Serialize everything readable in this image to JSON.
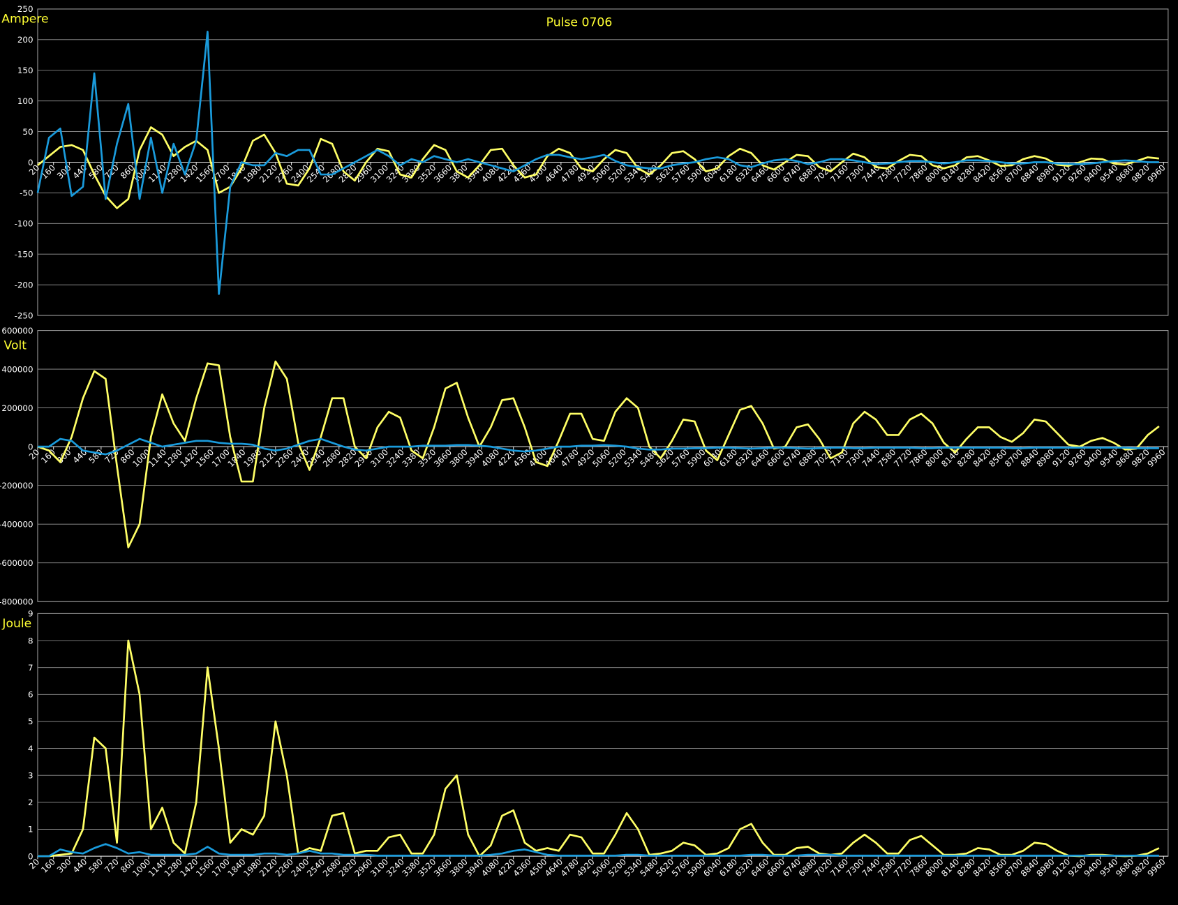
{
  "chart_data": [
    {
      "type": "line",
      "title": "Pulse 0706",
      "y_label": "Ampere",
      "x": [
        20,
        120,
        220,
        320,
        420,
        520,
        620,
        720,
        820,
        920,
        1020,
        1120,
        1220,
        1320,
        1420,
        1520,
        1620,
        1720,
        1820,
        1920,
        2020,
        2120,
        2220,
        2320,
        2420,
        2520,
        2620,
        2720,
        2820,
        2920,
        3020,
        3120,
        3220,
        3320,
        3420,
        3520,
        3620,
        3720,
        3820,
        3920,
        4020,
        4120,
        4220,
        4320,
        4420,
        4520,
        4620,
        4720,
        4820,
        4920,
        5020,
        5120,
        5220,
        5320,
        5420,
        5520,
        5620,
        5720,
        5820,
        5920,
        6020,
        6120,
        6220,
        6320,
        6420,
        6520,
        6620,
        6720,
        6820,
        6920,
        7020,
        7120,
        7220,
        7320,
        7420,
        7520,
        7620,
        7720,
        7820,
        7920,
        8020,
        8120,
        8220,
        8320,
        8420,
        8520,
        8620,
        8720,
        8820,
        8920,
        9020,
        9120,
        9220,
        9320,
        9420,
        9520,
        9620,
        9720,
        9820,
        9920
      ],
      "series": [
        {
          "color": "#ffff66",
          "values": [
            -5,
            10,
            25,
            28,
            20,
            -20,
            -55,
            -75,
            -60,
            20,
            57,
            45,
            10,
            25,
            35,
            20,
            -50,
            -40,
            -10,
            35,
            45,
            15,
            -35,
            -38,
            -10,
            38,
            30,
            -15,
            -30,
            0,
            22,
            18,
            -20,
            -25,
            5,
            28,
            20,
            -15,
            -25,
            -5,
            20,
            22,
            -5,
            -25,
            -20,
            10,
            22,
            15,
            -10,
            -15,
            5,
            20,
            15,
            -10,
            -20,
            -5,
            15,
            18,
            5,
            -15,
            -10,
            10,
            22,
            15,
            -5,
            -12,
            0,
            12,
            10,
            -8,
            -15,
            0,
            14,
            8,
            -8,
            -10,
            2,
            12,
            10,
            -5,
            -10,
            -5,
            8,
            10,
            3,
            -6,
            -5,
            5,
            10,
            6,
            -4,
            -6,
            0,
            6,
            5,
            -2,
            -4,
            2,
            8,
            6
          ]
        },
        {
          "color": "#1a9bdc",
          "values": [
            -50,
            40,
            55,
            -55,
            -40,
            145,
            -60,
            30,
            95,
            -60,
            40,
            -50,
            30,
            -20,
            35,
            213,
            -215,
            -40,
            0,
            -5,
            -5,
            15,
            10,
            20,
            20,
            -20,
            -20,
            -10,
            0,
            10,
            20,
            10,
            -5,
            5,
            0,
            10,
            5,
            0,
            5,
            0,
            -5,
            -10,
            -15,
            -5,
            5,
            12,
            12,
            8,
            5,
            8,
            12,
            2,
            -5,
            -8,
            -10,
            -10,
            -5,
            -2,
            0,
            5,
            8,
            5,
            -5,
            -8,
            -2,
            3,
            5,
            2,
            -3,
            0,
            5,
            5,
            3,
            0,
            -3,
            -2,
            0,
            2,
            2,
            0,
            -2,
            0,
            3,
            3,
            2,
            0,
            -2,
            -2,
            0,
            0,
            -2,
            -3,
            -3,
            -2,
            0,
            2,
            3,
            2,
            0,
            0
          ]
        }
      ],
      "xlim": [
        20,
        10000
      ],
      "ylim": [
        -250,
        250
      ],
      "yticks": [
        -250,
        -200,
        -150,
        -100,
        -50,
        0,
        50,
        100,
        150,
        200,
        250
      ],
      "grid": true,
      "xticks": [
        20,
        160,
        300,
        440,
        580,
        720,
        860,
        1000,
        1140,
        1280,
        1420,
        1560,
        1700,
        1840,
        1980,
        2120,
        2260,
        2400,
        2540,
        2680,
        2820,
        2960,
        3100,
        3240,
        3380,
        3520,
        3660,
        3800,
        3940,
        4080,
        4220,
        4360,
        4500,
        4640,
        4780,
        4920,
        5060,
        5200,
        5340,
        5480,
        5620,
        5760,
        5900,
        6040,
        6180,
        6320,
        6460,
        6600,
        6740,
        6880,
        7020,
        7160,
        7300,
        7440,
        7580,
        7720,
        7860,
        8000,
        8140,
        8280,
        8420,
        8560,
        8700,
        8840,
        8980,
        9120,
        9260,
        9400,
        9540,
        9680,
        9820,
        9960
      ]
    },
    {
      "type": "line",
      "y_label": "Volt",
      "x": [
        20,
        120,
        220,
        320,
        420,
        520,
        620,
        720,
        820,
        920,
        1020,
        1120,
        1220,
        1320,
        1420,
        1520,
        1620,
        1720,
        1820,
        1920,
        2020,
        2120,
        2220,
        2320,
        2420,
        2520,
        2620,
        2720,
        2820,
        2920,
        3020,
        3120,
        3220,
        3320,
        3420,
        3520,
        3620,
        3720,
        3820,
        3920,
        4020,
        4120,
        4220,
        4320,
        4420,
        4520,
        4620,
        4720,
        4820,
        4920,
        5020,
        5120,
        5220,
        5320,
        5420,
        5520,
        5620,
        5720,
        5820,
        5920,
        6020,
        6120,
        6220,
        6320,
        6420,
        6520,
        6620,
        6720,
        6820,
        6920,
        7020,
        7120,
        7220,
        7320,
        7420,
        7520,
        7620,
        7720,
        7820,
        7920,
        8020,
        8120,
        8220,
        8320,
        8420,
        8520,
        8620,
        8720,
        8820,
        8920,
        9020,
        9120,
        9220,
        9320,
        9420,
        9520,
        9620,
        9720,
        9820,
        9920
      ],
      "series": [
        {
          "color": "#ffff66",
          "values": [
            0,
            -20000,
            -80000,
            50000,
            250000,
            390000,
            350000,
            -100000,
            -520000,
            -400000,
            50000,
            270000,
            120000,
            30000,
            250000,
            430000,
            420000,
            50000,
            -180000,
            -180000,
            200000,
            440000,
            350000,
            20000,
            -120000,
            50000,
            250000,
            250000,
            0,
            -60000,
            100000,
            180000,
            150000,
            -20000,
            -60000,
            100000,
            300000,
            330000,
            150000,
            0,
            100000,
            240000,
            250000,
            100000,
            -80000,
            -100000,
            30000,
            170000,
            170000,
            40000,
            30000,
            180000,
            250000,
            200000,
            0,
            -60000,
            30000,
            140000,
            130000,
            -20000,
            -70000,
            60000,
            190000,
            210000,
            120000,
            -10000,
            0,
            100000,
            115000,
            40000,
            -60000,
            -30000,
            120000,
            180000,
            140000,
            60000,
            60000,
            140000,
            170000,
            120000,
            20000,
            -30000,
            40000,
            100000,
            100000,
            50000,
            25000,
            70000,
            140000,
            130000,
            70000,
            10000,
            0,
            30000,
            45000,
            20000,
            -15000,
            -10000,
            60000,
            105000
          ]
        },
        {
          "color": "#1a9bdc",
          "values": [
            0,
            0,
            40000,
            30000,
            -20000,
            -30000,
            -40000,
            -20000,
            10000,
            40000,
            20000,
            0,
            10000,
            20000,
            30000,
            30000,
            20000,
            15000,
            15000,
            10000,
            -10000,
            -20000,
            -10000,
            10000,
            30000,
            40000,
            20000,
            0,
            -15000,
            -20000,
            -10000,
            0,
            0,
            0,
            5000,
            5000,
            5000,
            8000,
            8000,
            5000,
            0,
            -10000,
            -20000,
            -25000,
            -20000,
            -10000,
            0,
            0,
            5000,
            5000,
            8000,
            5000,
            0,
            -10000,
            -15000,
            -15000,
            -10000,
            -10000,
            -8000,
            -8000,
            -5000,
            -5000,
            -8000,
            -10000,
            -8000,
            -5000,
            -5000,
            -8000,
            -10000,
            -8000,
            -5000,
            -5000,
            -8000,
            -8000,
            -5000,
            -5000,
            -5000,
            -5000,
            -8000,
            -8000,
            -5000,
            -5000,
            -5000,
            -5000,
            -5000,
            -5000,
            -8000,
            -8000,
            -5000,
            -5000,
            -5000,
            -5000,
            -5000,
            -5000,
            -5000,
            -5000,
            -5000,
            -8000,
            -8000,
            -8000
          ]
        }
      ],
      "xlim": [
        20,
        10000
      ],
      "ylim": [
        -800000,
        600000
      ],
      "yticks": [
        -800000,
        -600000,
        -400000,
        -200000,
        0,
        200000,
        400000,
        600000
      ],
      "grid": true,
      "xticks": [
        20,
        160,
        300,
        440,
        580,
        720,
        860,
        1000,
        1140,
        1280,
        1420,
        1560,
        1700,
        1840,
        1980,
        2120,
        2260,
        2400,
        2540,
        2680,
        2820,
        2960,
        3100,
        3240,
        3380,
        3520,
        3660,
        3800,
        3940,
        4080,
        4220,
        4360,
        4500,
        4640,
        4780,
        4920,
        5060,
        5200,
        5340,
        5480,
        5620,
        5760,
        5900,
        6040,
        6180,
        6320,
        6460,
        6600,
        6740,
        6880,
        7020,
        7160,
        7300,
        7440,
        7580,
        7720,
        7860,
        8000,
        8140,
        8280,
        8420,
        8560,
        8700,
        8840,
        8980,
        9120,
        9260,
        9400,
        9540,
        9680,
        9820,
        9960
      ]
    },
    {
      "type": "line",
      "y_label": "Joule",
      "x": [
        20,
        120,
        220,
        320,
        420,
        520,
        620,
        720,
        820,
        920,
        1020,
        1120,
        1220,
        1320,
        1420,
        1520,
        1620,
        1720,
        1820,
        1920,
        2020,
        2120,
        2220,
        2320,
        2420,
        2520,
        2620,
        2720,
        2820,
        2920,
        3020,
        3120,
        3220,
        3320,
        3420,
        3520,
        3620,
        3720,
        3820,
        3920,
        4020,
        4120,
        4220,
        4320,
        4420,
        4520,
        4620,
        4720,
        4820,
        4920,
        5020,
        5120,
        5220,
        5320,
        5420,
        5520,
        5620,
        5720,
        5820,
        5920,
        6020,
        6120,
        6220,
        6320,
        6420,
        6520,
        6620,
        6720,
        6820,
        6920,
        7020,
        7120,
        7220,
        7320,
        7420,
        7520,
        7620,
        7720,
        7820,
        7920,
        8020,
        8120,
        8220,
        8320,
        8420,
        8520,
        8620,
        8720,
        8820,
        8920,
        9020,
        9120,
        9220,
        9320,
        9420,
        9520,
        9620,
        9720,
        9820,
        9920
      ],
      "series": [
        {
          "color": "#ffff66",
          "values": [
            0,
            0,
            0.05,
            0.1,
            1,
            4.4,
            4,
            0.5,
            8,
            6,
            1,
            1.8,
            0.5,
            0.1,
            2,
            7,
            4,
            0.5,
            1,
            0.8,
            1.5,
            5,
            3,
            0.1,
            0.3,
            0.2,
            1.5,
            1.6,
            0.1,
            0.2,
            0.2,
            0.7,
            0.8,
            0.1,
            0.1,
            0.8,
            2.5,
            3,
            0.8,
            0,
            0.4,
            1.5,
            1.7,
            0.5,
            0.2,
            0.3,
            0.2,
            0.8,
            0.7,
            0.1,
            0.1,
            0.8,
            1.6,
            1,
            0.05,
            0.1,
            0.2,
            0.5,
            0.4,
            0.05,
            0.1,
            0.3,
            1,
            1.2,
            0.5,
            0.05,
            0.05,
            0.3,
            0.35,
            0.1,
            0.05,
            0.1,
            0.5,
            0.8,
            0.5,
            0.1,
            0.1,
            0.6,
            0.75,
            0.4,
            0.05,
            0.05,
            0.1,
            0.3,
            0.25,
            0.05,
            0.05,
            0.2,
            0.5,
            0.45,
            0.2,
            0.02,
            0,
            0.05,
            0.05,
            0.02,
            0,
            0.02,
            0.1,
            0.3
          ]
        },
        {
          "color": "#1a9bdc",
          "values": [
            0,
            0,
            0.25,
            0.15,
            0.1,
            0.3,
            0.45,
            0.3,
            0.1,
            0.15,
            0.05,
            0.05,
            0.05,
            0.05,
            0.1,
            0.35,
            0.1,
            0.05,
            0.05,
            0.05,
            0.1,
            0.1,
            0.05,
            0.1,
            0.2,
            0.1,
            0.1,
            0.05,
            0.05,
            0.05,
            0.02,
            0.02,
            0.02,
            0.02,
            0.02,
            0.02,
            0.02,
            0.02,
            0.02,
            0.02,
            0.05,
            0.1,
            0.2,
            0.25,
            0.15,
            0.05,
            0.02,
            0.02,
            0.02,
            0.02,
            0.02,
            0.02,
            0.05,
            0.05,
            0.02,
            0.02,
            0.02,
            0.02,
            0.02,
            0.02,
            0.02,
            0.02,
            0.02,
            0.05,
            0.05,
            0.02,
            0.02,
            0.02,
            0.05,
            0.05,
            0.05,
            0.02,
            0.02,
            0.02,
            0.02,
            0.02,
            0.02,
            0.02,
            0.02,
            0.02,
            0.02,
            0.02,
            0.02,
            0.02,
            0.02,
            0.02,
            0.02,
            0.02,
            0.02,
            0.02,
            0.02,
            0.02,
            0.02,
            0.02,
            0.02,
            0.02,
            0.02,
            0.02,
            0.02,
            0.02
          ]
        }
      ],
      "xlim": [
        20,
        10000
      ],
      "ylim": [
        0,
        9
      ],
      "yticks": [
        0,
        1,
        2,
        3,
        4,
        5,
        6,
        7,
        8,
        9
      ],
      "grid": true,
      "xticks": [
        20,
        160,
        300,
        440,
        580,
        720,
        860,
        1000,
        1140,
        1280,
        1420,
        1560,
        1700,
        1840,
        1980,
        2120,
        2260,
        2400,
        2540,
        2680,
        2820,
        2960,
        3100,
        3240,
        3380,
        3520,
        3660,
        3800,
        3940,
        4080,
        4220,
        4360,
        4500,
        4640,
        4780,
        4920,
        5060,
        5200,
        5340,
        5480,
        5620,
        5760,
        5900,
        6040,
        6180,
        6320,
        6460,
        6600,
        6740,
        6880,
        7020,
        7160,
        7300,
        7440,
        7580,
        7720,
        7860,
        8000,
        8140,
        8280,
        8420,
        8560,
        8700,
        8840,
        8980,
        9120,
        9260,
        9400,
        9540,
        9680,
        9820,
        9960
      ]
    }
  ]
}
